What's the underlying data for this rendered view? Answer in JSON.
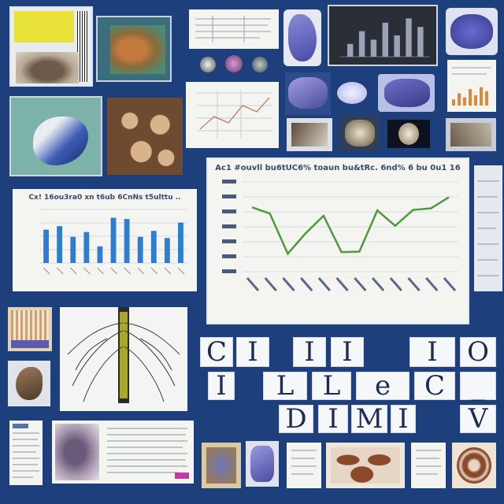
{
  "palette": {
    "background": "#1d3f7c",
    "paper": "#f4f4f0",
    "chart_line": "#4f9a3f",
    "bar_blue": "#2f7dd1",
    "dark_panel": "#2a2f37",
    "specimen_purple": "#5a5ab8",
    "specimen_brown": "#7a4a2c"
  },
  "letters": {
    "row1": [
      "C",
      "I",
      "I",
      "I",
      "I",
      "O"
    ],
    "row2": [
      "I",
      "L",
      "L",
      "e",
      "C",
      "_"
    ],
    "row3": [
      "D",
      "I",
      "M",
      "I",
      "V"
    ]
  },
  "chart_data": [
    {
      "type": "bar",
      "title": "Cx! 16ou3ra0 xn t6ub 6CnNs t5ulttu ..",
      "series": [
        {
          "values": [
            28,
            31,
            22,
            26,
            14,
            38,
            37,
            22,
            27,
            21,
            34
          ]
        }
      ],
      "ylim": [
        0,
        45
      ]
    },
    {
      "type": "line",
      "title": "Ac1 #ouvll bu6tUC6% toaun bu&tRc. 6nd% 6 bu 0u1 16",
      "series": [
        {
          "values": [
            40.2,
            39.0,
            31.4,
            35.3,
            38.6,
            31.7,
            31.8,
            39.6,
            36.7,
            39.7,
            40.0,
            42.1
          ]
        }
      ],
      "ylim": [
        28,
        45
      ]
    },
    {
      "type": "bar",
      "series": [
        {
          "values": [
            3,
            6,
            4,
            8,
            5,
            9,
            7
          ]
        }
      ],
      "ylim": [
        0,
        10
      ]
    }
  ]
}
